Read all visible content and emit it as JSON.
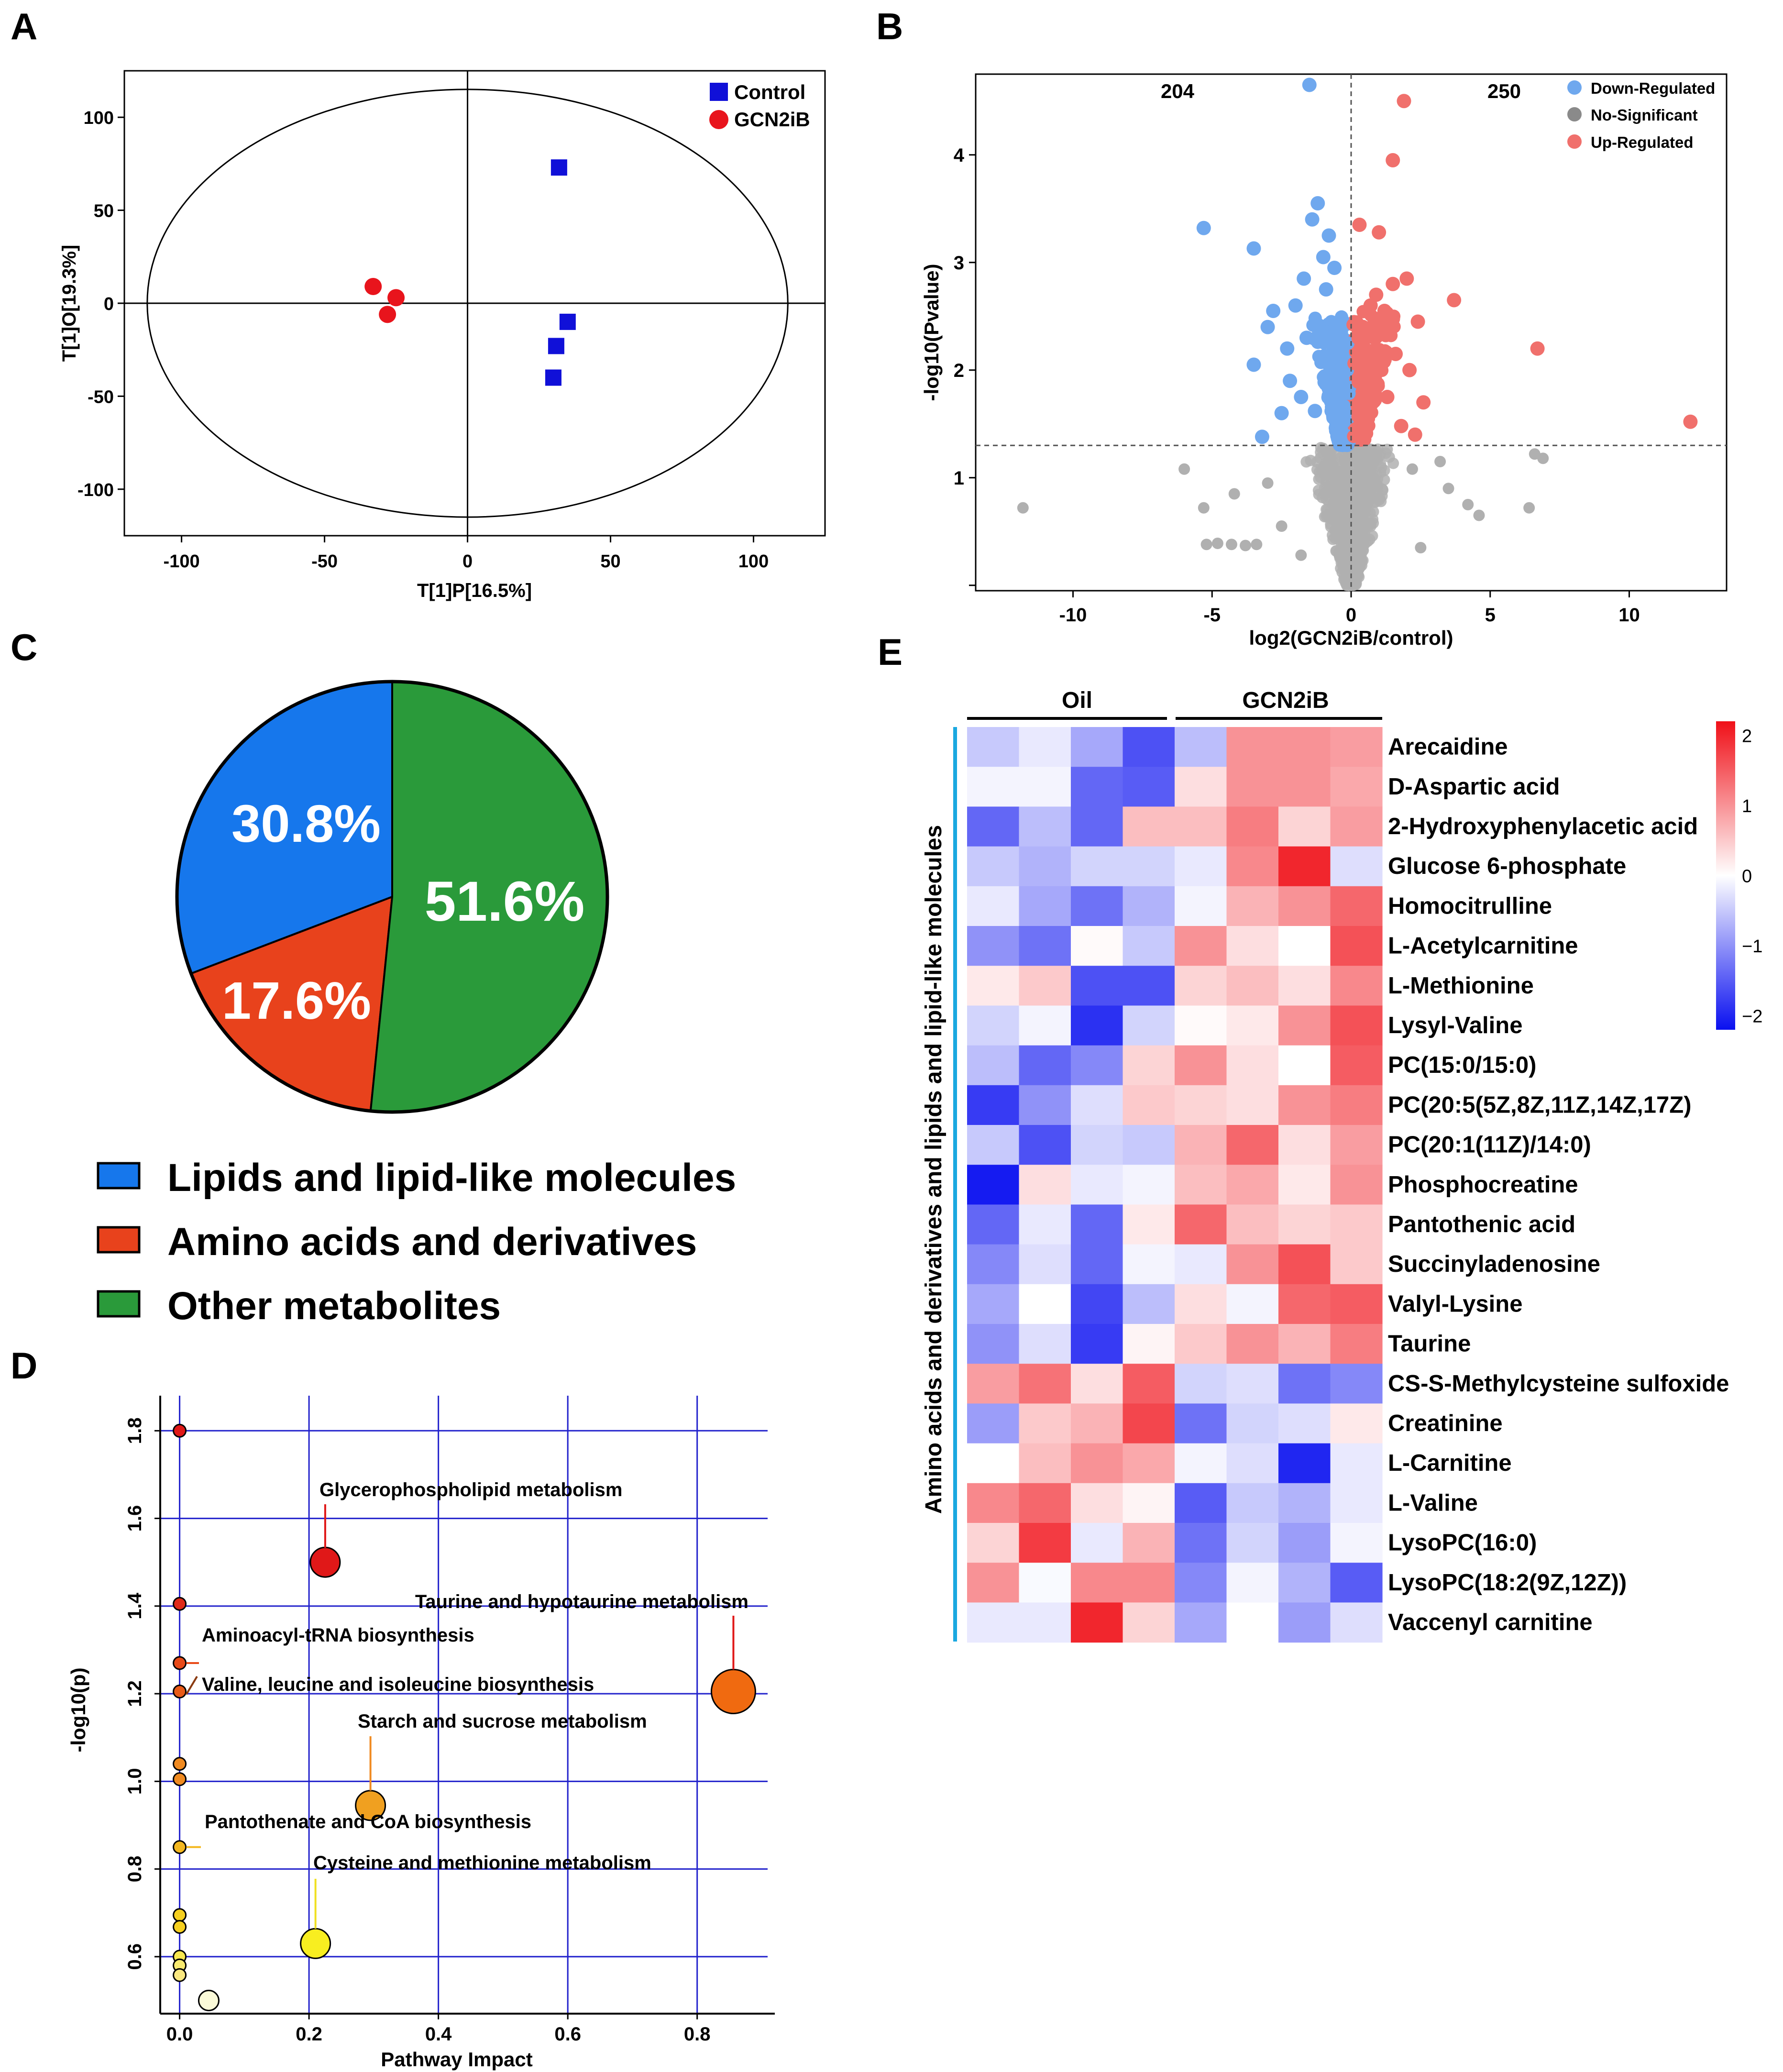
{
  "panel_labels": {
    "a": "A",
    "b": "B",
    "c": "C",
    "d": "D",
    "e": "E"
  },
  "colors": {
    "control": "#1010d8",
    "gcn2ib": "#e8141c",
    "down": "#6fa8ee",
    "ns": "#b0b0b0",
    "up": "#f0706c",
    "pie_lipid": "#1677ec",
    "pie_amino": "#e8421c",
    "pie_other": "#2a9a3a",
    "grid_blue": "#2222cc",
    "heat_low": "#0a10f0",
    "heat_mid": "#ffffff",
    "heat_high": "#f01018"
  },
  "chart_data": [
    {
      "id": "A",
      "type": "scatter",
      "title": "",
      "xlabel": "T[1]P[16.5%]",
      "ylabel": "T[1]O[19.3%]",
      "xlim": [
        -120,
        125
      ],
      "ylim": [
        -125,
        125
      ],
      "xticks": [
        -100,
        -50,
        0,
        50,
        100
      ],
      "yticks": [
        100,
        50,
        0,
        -50,
        -100
      ],
      "ellipse": {
        "center": [
          0,
          0
        ],
        "rx": 112,
        "ry": 115
      },
      "series": [
        {
          "name": "Control",
          "marker": "square",
          "points": [
            [
              32,
              73
            ],
            [
              35,
              -10
            ],
            [
              31,
              -23
            ],
            [
              30,
              -40
            ]
          ]
        },
        {
          "name": "GCN2iB",
          "marker": "circle",
          "points": [
            [
              -33,
              9
            ],
            [
              -25,
              3
            ],
            [
              -28,
              -6
            ]
          ]
        }
      ]
    },
    {
      "id": "B",
      "type": "scatter",
      "title": "",
      "xlabel": "log2(GCN2iB/control)",
      "ylabel": "-log10(Pvalue)",
      "xlim": [
        -13.5,
        13.5
      ],
      "ylim": [
        -0.05,
        4.75
      ],
      "xticks": [
        -10,
        -5,
        0,
        5,
        10
      ],
      "yticks": [
        1,
        2,
        3,
        4
      ],
      "threshold_y": 1.3,
      "counts": {
        "down": "204",
        "up": "250"
      },
      "legend": [
        "Down-Regulated",
        "No-Significant",
        "Up-Regulated"
      ],
      "highlight_points": {
        "down": [
          [
            -1.5,
            4.65
          ],
          [
            -5.3,
            3.32
          ],
          [
            -3.5,
            3.13
          ],
          [
            -1.2,
            3.55
          ],
          [
            -1.4,
            3.4
          ],
          [
            -0.8,
            3.25
          ],
          [
            -1.0,
            3.05
          ],
          [
            -2.8,
            2.55
          ],
          [
            -3.0,
            2.4
          ],
          [
            -2.0,
            2.6
          ],
          [
            -1.6,
            2.3
          ],
          [
            -2.3,
            2.2
          ],
          [
            -3.5,
            2.05
          ],
          [
            -2.2,
            1.9
          ],
          [
            -2.5,
            1.6
          ],
          [
            -3.2,
            1.38
          ],
          [
            -1.8,
            1.75
          ],
          [
            -1.3,
            1.62
          ],
          [
            -0.9,
            2.75
          ],
          [
            -0.6,
            2.95
          ],
          [
            -1.7,
            2.85
          ],
          [
            -0.5,
            2.1
          ],
          [
            -0.7,
            1.85
          ],
          [
            -0.4,
            1.55
          ]
        ],
        "up": [
          [
            1.9,
            4.5
          ],
          [
            1.5,
            3.95
          ],
          [
            0.3,
            3.35
          ],
          [
            1.0,
            3.28
          ],
          [
            3.7,
            2.65
          ],
          [
            6.7,
            2.2
          ],
          [
            12.2,
            1.52
          ],
          [
            2.4,
            2.45
          ],
          [
            1.5,
            2.8
          ],
          [
            0.9,
            2.7
          ],
          [
            1.2,
            2.55
          ],
          [
            2.1,
            2.0
          ],
          [
            2.6,
            1.7
          ],
          [
            2.3,
            1.4
          ],
          [
            1.6,
            2.15
          ],
          [
            0.6,
            2.35
          ],
          [
            0.8,
            1.95
          ],
          [
            1.3,
            1.75
          ],
          [
            0.5,
            1.55
          ],
          [
            1.8,
            1.48
          ],
          [
            0.7,
            2.6
          ],
          [
            2.0,
            2.85
          ]
        ]
      }
    },
    {
      "id": "C",
      "type": "pie",
      "title": "",
      "slices": [
        {
          "label": "Lipids and lipid-like molecules",
          "value": 30.8,
          "display": "30.8%"
        },
        {
          "label": "Amino acids and derivatives",
          "value": 17.6,
          "display": "17.6%"
        },
        {
          "label": "Other metabolites",
          "value": 51.6,
          "display": "51.6%"
        }
      ]
    },
    {
      "id": "D",
      "type": "scatter",
      "title": "",
      "xlabel": "Pathway Impact",
      "ylabel": "-log10(p)",
      "xlim": [
        -0.03,
        0.92
      ],
      "ylim": [
        0.47,
        1.88
      ],
      "xticks": [
        0.0,
        0.2,
        0.4,
        0.6,
        0.8
      ],
      "xtick_labels": [
        "0.0",
        "0.2",
        "0.4",
        "0.6",
        "0.8"
      ],
      "yticks": [
        1.8,
        1.6,
        1.4,
        1.2,
        1.0,
        0.8,
        0.6
      ],
      "ytick_labels": [
        "1.8",
        "1.6",
        "1.4",
        "1.2",
        "1.0",
        "0.8",
        "0.6"
      ],
      "points": [
        {
          "x": 0.0,
          "y": 1.8,
          "size": 1,
          "color": "#e01818",
          "label": ""
        },
        {
          "x": 0.225,
          "y": 1.5,
          "size": 3,
          "color": "#e01818",
          "label": "Glycerophospholipid metabolism"
        },
        {
          "x": 0.0,
          "y": 1.405,
          "size": 1,
          "color": "#e02a18",
          "label": ""
        },
        {
          "x": 0.0,
          "y": 1.27,
          "size": 1,
          "color": "#e84a18",
          "label": "Aminoacyl-tRNA biosynthesis"
        },
        {
          "x": 0.0,
          "y": 1.205,
          "size": 1,
          "color": "#e85a18",
          "label": "Valine, leucine and isoleucine biosynthesis"
        },
        {
          "x": 0.856,
          "y": 1.205,
          "size": 4,
          "color": "#f06a10",
          "label": "Taurine and hypotaurine metabolism"
        },
        {
          "x": 0.0,
          "y": 1.04,
          "size": 1,
          "color": "#f08a20",
          "label": ""
        },
        {
          "x": 0.0,
          "y": 1.005,
          "size": 1,
          "color": "#f08a20",
          "label": ""
        },
        {
          "x": 0.295,
          "y": 0.945,
          "size": 3,
          "color": "#f0a020",
          "label": "Starch and sucrose metabolism"
        },
        {
          "x": 0.0,
          "y": 0.85,
          "size": 1,
          "color": "#f4b820",
          "label": "Pantothenate and CoA biosynthesis"
        },
        {
          "x": 0.0,
          "y": 0.695,
          "size": 1,
          "color": "#f6d020",
          "label": ""
        },
        {
          "x": 0.0,
          "y": 0.668,
          "size": 1,
          "color": "#f6d020",
          "label": ""
        },
        {
          "x": 0.21,
          "y": 0.63,
          "size": 3,
          "color": "#f8ee20",
          "label": "Cysteine and methionine metabolism"
        },
        {
          "x": 0.0,
          "y": 0.6,
          "size": 1,
          "color": "#f8e850",
          "label": ""
        },
        {
          "x": 0.0,
          "y": 0.58,
          "size": 1,
          "color": "#f8ea70",
          "label": ""
        },
        {
          "x": 0.0,
          "y": 0.558,
          "size": 1,
          "color": "#fae880",
          "label": ""
        },
        {
          "x": 0.045,
          "y": 0.5,
          "size": 2,
          "color": "#fbfad8",
          "label": ""
        }
      ]
    },
    {
      "id": "E",
      "type": "heatmap",
      "title": "",
      "groups": [
        {
          "name": "Oil",
          "columns": 4
        },
        {
          "name": "GCN2iB",
          "columns": 4
        }
      ],
      "row_axis_label": "Amino acids and derivatives and lipids and lipid-like molecules",
      "color_scale": {
        "min": -2.2,
        "max": 2.2,
        "ticks": [
          "2",
          "1",
          "0",
          "−1",
          "−2"
        ],
        "tick_values": [
          2,
          1,
          0,
          -1,
          -2
        ]
      },
      "rows": [
        {
          "name": "Arecaidine",
          "values": [
            -0.5,
            -0.2,
            -0.8,
            -1.6,
            -0.6,
            1.0,
            1.0,
            0.9
          ]
        },
        {
          "name": "D-Aspartic acid",
          "values": [
            -0.1,
            -0.1,
            -1.4,
            -1.5,
            0.3,
            1.0,
            1.0,
            0.8
          ]
        },
        {
          "name": "2-Hydroxyphenylacetic acid",
          "values": [
            -1.4,
            -0.6,
            -1.4,
            0.6,
            0.6,
            1.2,
            0.4,
            0.9
          ]
        },
        {
          "name": "Glucose 6-phosphate",
          "values": [
            -0.5,
            -0.7,
            -0.4,
            -0.4,
            -0.2,
            1.1,
            2.0,
            -0.3
          ]
        },
        {
          "name": "Homocitrulline",
          "values": [
            -0.2,
            -0.8,
            -1.3,
            -0.7,
            -0.1,
            0.7,
            1.0,
            1.4
          ]
        },
        {
          "name": "L-Acetylcarnitine",
          "values": [
            -1.0,
            -1.3,
            0.05,
            -0.5,
            1.0,
            0.3,
            0.0,
            1.6
          ]
        },
        {
          "name": "L-Methionine",
          "values": [
            0.2,
            0.5,
            -1.6,
            -1.6,
            0.4,
            0.6,
            0.3,
            1.1
          ]
        },
        {
          "name": "Lysyl-Valine",
          "values": [
            -0.4,
            -0.1,
            -1.9,
            -0.4,
            0.05,
            0.2,
            1.0,
            1.6
          ]
        },
        {
          "name": "PC(15:0/15:0)",
          "values": [
            -0.6,
            -1.4,
            -1.1,
            0.4,
            1.0,
            0.3,
            0.0,
            1.5
          ]
        },
        {
          "name": "PC(20:5(5Z,8Z,11Z,14Z,17Z)",
          "values": [
            -1.8,
            -1.0,
            -0.3,
            0.5,
            0.4,
            0.3,
            1.0,
            1.2
          ]
        },
        {
          "name": "PC(20:1(11Z)/14:0)",
          "values": [
            -0.5,
            -1.6,
            -0.4,
            -0.5,
            0.7,
            1.4,
            0.3,
            0.9
          ]
        },
        {
          "name": "Phosphocreatine",
          "values": [
            -2.1,
            0.3,
            -0.2,
            -0.1,
            0.6,
            0.8,
            0.2,
            1.0
          ]
        },
        {
          "name": "Pantothenic acid",
          "values": [
            -1.4,
            -0.2,
            -1.4,
            0.2,
            1.4,
            0.6,
            0.4,
            0.5
          ]
        },
        {
          "name": "Succinyladenosine",
          "values": [
            -1.1,
            -0.3,
            -1.4,
            -0.1,
            -0.2,
            1.0,
            1.6,
            0.5
          ]
        },
        {
          "name": "Valyl-Lysine",
          "values": [
            -0.8,
            0.0,
            -1.7,
            -0.6,
            0.3,
            -0.1,
            1.4,
            1.5
          ]
        },
        {
          "name": "Taurine",
          "values": [
            -1.0,
            -0.3,
            -1.8,
            0.1,
            0.5,
            1.0,
            0.7,
            1.2
          ]
        },
        {
          "name": "CS-S-Methylcysteine sulfoxide",
          "values": [
            0.9,
            1.3,
            0.3,
            1.5,
            -0.4,
            -0.3,
            -1.3,
            -1.1
          ]
        },
        {
          "name": "Creatinine",
          "values": [
            -0.9,
            0.5,
            0.7,
            1.7,
            -1.3,
            -0.4,
            -0.3,
            0.2
          ]
        },
        {
          "name": "L-Carnitine",
          "values": [
            0.0,
            0.6,
            1.0,
            0.8,
            -0.1,
            -0.3,
            -2.0,
            -0.2
          ]
        },
        {
          "name": "L-Valine",
          "values": [
            1.1,
            1.4,
            0.3,
            0.1,
            -1.5,
            -0.5,
            -0.7,
            -0.2
          ]
        },
        {
          "name": "LysoPC(16:0)",
          "values": [
            0.4,
            1.8,
            -0.2,
            0.7,
            -1.3,
            -0.4,
            -0.9,
            -0.1
          ]
        },
        {
          "name": "LysoPC(18:2(9Z,12Z))",
          "values": [
            1.0,
            -0.05,
            1.1,
            1.1,
            -1.1,
            -0.1,
            -0.7,
            -1.5
          ]
        },
        {
          "name": "Vaccenyl carnitine",
          "values": [
            -0.2,
            -0.2,
            2.0,
            0.4,
            -0.8,
            0.0,
            -0.9,
            -0.3
          ]
        }
      ]
    }
  ]
}
